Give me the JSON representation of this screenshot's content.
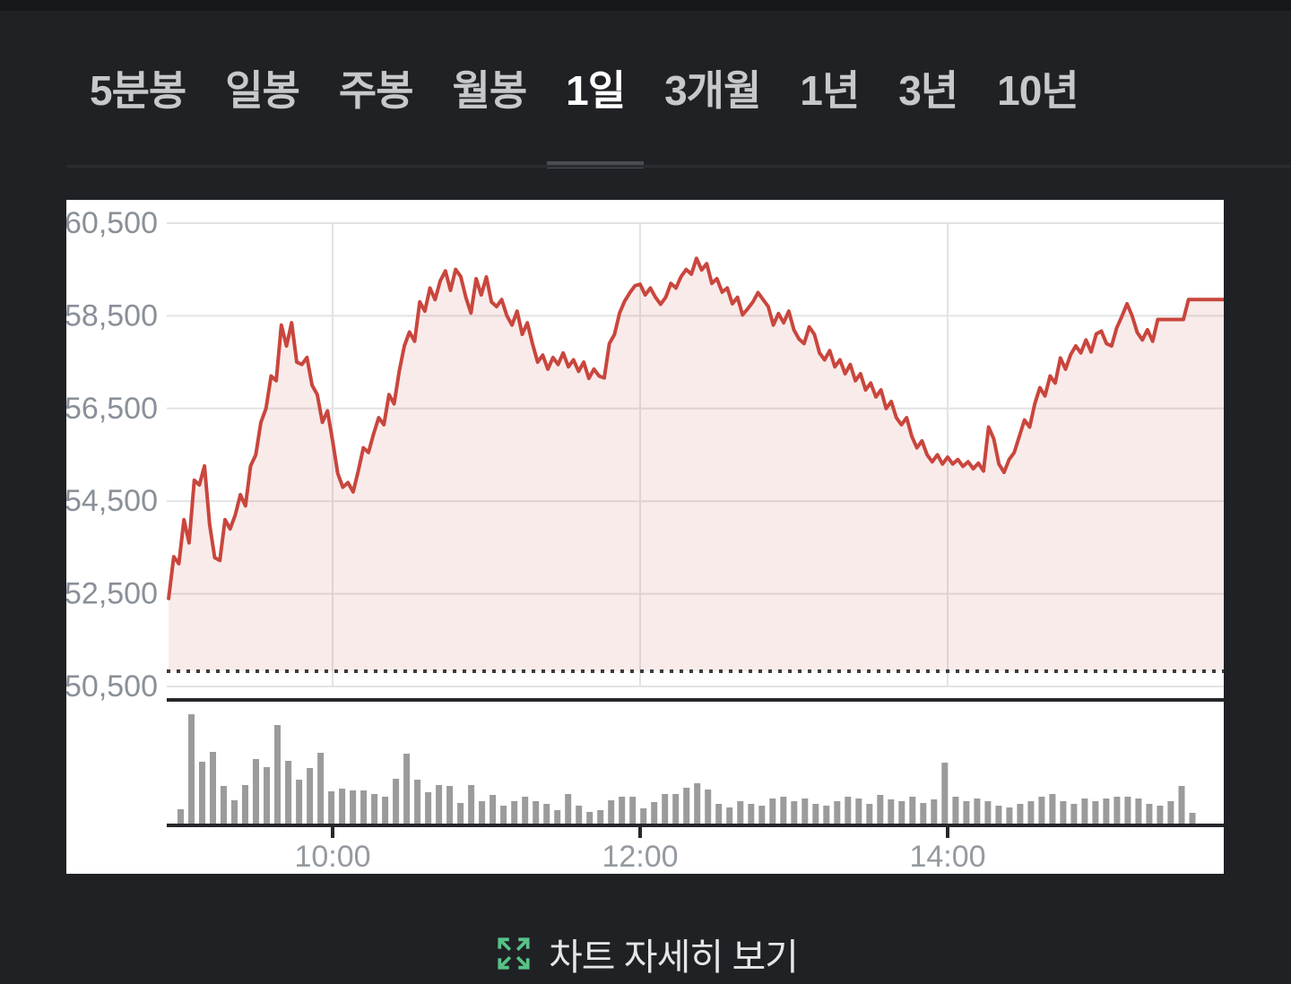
{
  "tabs": {
    "active_id": "1day",
    "items": [
      {
        "id": "5min",
        "label": "5분봉"
      },
      {
        "id": "daily",
        "label": "일봉"
      },
      {
        "id": "weekly",
        "label": "주봉"
      },
      {
        "id": "monthly",
        "label": "월봉"
      },
      {
        "id": "1day",
        "label": "1일"
      },
      {
        "id": "3month",
        "label": "3개월"
      },
      {
        "id": "1year",
        "label": "1년"
      },
      {
        "id": "3year",
        "label": "3년"
      },
      {
        "id": "10year",
        "label": "10년"
      }
    ]
  },
  "footer": {
    "label": "차트 자세히 보기",
    "icon": "expand-icon",
    "icon_color": "#58c288"
  },
  "chart_data": {
    "type": "area",
    "title": "1일 intraday price with volume",
    "x_axis": {
      "tick_labels": [
        "10:00",
        "12:00",
        "14:00"
      ],
      "tick_minutes": [
        600,
        720,
        840
      ],
      "grid": true
    },
    "y_axis": {
      "tick_labels": [
        "60,500",
        "58,500",
        "56,500",
        "54,500",
        "52,500",
        "50,500"
      ],
      "tick_values": [
        60500,
        58500,
        56500,
        54500,
        52500,
        50500
      ],
      "grid": true
    },
    "prev_close_reference": 50830,
    "day_open": 52400,
    "day_high": 59740,
    "day_low": 52400,
    "day_close": 58850,
    "series": {
      "name": "price",
      "start_min": 536,
      "step_min": 2,
      "values": [
        52400,
        53300,
        53150,
        54100,
        53600,
        54950,
        54850,
        55260,
        54000,
        53280,
        53220,
        54100,
        53900,
        54200,
        54640,
        54400,
        55260,
        55500,
        56200,
        56500,
        57200,
        57100,
        58300,
        57850,
        58350,
        57500,
        57450,
        57600,
        57000,
        56800,
        56200,
        56450,
        55800,
        55100,
        54800,
        54900,
        54700,
        55150,
        55650,
        55550,
        55950,
        56300,
        56150,
        56800,
        56600,
        57300,
        57850,
        58150,
        57950,
        58800,
        58600,
        59100,
        58850,
        59250,
        59470,
        59050,
        59500,
        59350,
        58900,
        58560,
        59300,
        58950,
        59340,
        58800,
        58700,
        58850,
        58500,
        58300,
        58600,
        58100,
        58350,
        57900,
        57500,
        57650,
        57350,
        57600,
        57450,
        57700,
        57400,
        57550,
        57300,
        57500,
        57150,
        57350,
        57200,
        57160,
        57900,
        58100,
        58560,
        58820,
        59000,
        59150,
        59180,
        58950,
        59100,
        58900,
        58750,
        58900,
        59200,
        59100,
        59350,
        59500,
        59400,
        59740,
        59490,
        59625,
        59200,
        59300,
        59010,
        59100,
        58760,
        58900,
        58520,
        58650,
        58800,
        59000,
        58850,
        58700,
        58300,
        58550,
        58350,
        58600,
        58200,
        58000,
        57900,
        58260,
        58100,
        57700,
        57550,
        57750,
        57400,
        57550,
        57250,
        57450,
        57100,
        57250,
        56900,
        57050,
        56750,
        56900,
        56500,
        56650,
        56300,
        56150,
        56300,
        55900,
        55650,
        55800,
        55500,
        55350,
        55500,
        55300,
        55450,
        55300,
        55400,
        55250,
        55350,
        55200,
        55320,
        55150,
        56100,
        55850,
        55300,
        55120,
        55400,
        55550,
        55900,
        56250,
        56100,
        56600,
        56950,
        56770,
        57200,
        57050,
        57590,
        57350,
        57660,
        57850,
        57700,
        57980,
        57720,
        58110,
        58170,
        57900,
        57850,
        58240,
        58490,
        58760,
        58500,
        58140,
        57980,
        58200,
        57950,
        58420,
        58420,
        58420,
        58420,
        58420,
        58420,
        58850,
        58850,
        58850,
        58850,
        58850,
        58850,
        58850,
        58850
      ]
    },
    "volume": {
      "name": "volume",
      "start_min": 540,
      "step_min": 4.2,
      "unit": "relative",
      "relative_heights": [
        16,
        122,
        69,
        80,
        42,
        26,
        43,
        72,
        63,
        110,
        70,
        49,
        62,
        79,
        36,
        39,
        37,
        37,
        33,
        30,
        50,
        78,
        49,
        35,
        43,
        42,
        23,
        43,
        25,
        32,
        20,
        25,
        30,
        25,
        22,
        15,
        33,
        20,
        13,
        15,
        26,
        30,
        30,
        17,
        24,
        33,
        33,
        40,
        45,
        38,
        22,
        18,
        25,
        22,
        20,
        28,
        30,
        25,
        28,
        22,
        20,
        25,
        30,
        28,
        22,
        32,
        27,
        25,
        30,
        23,
        27,
        68,
        30,
        25,
        28,
        25,
        20,
        18,
        22,
        25,
        30,
        33,
        25,
        22,
        28,
        25,
        28,
        30,
        30,
        28,
        22,
        20,
        25,
        42,
        12
      ]
    },
    "colors": {
      "line": "#c9463d",
      "fill": "rgba(201,70,61,0.11)",
      "volume": "#9b9b9b",
      "grid": "#e2e3e5",
      "prev_close_dotted": "#3c3c3c",
      "axis_label": "#8a9099",
      "time_label": "#949aa0",
      "separator": "#26272a"
    }
  }
}
